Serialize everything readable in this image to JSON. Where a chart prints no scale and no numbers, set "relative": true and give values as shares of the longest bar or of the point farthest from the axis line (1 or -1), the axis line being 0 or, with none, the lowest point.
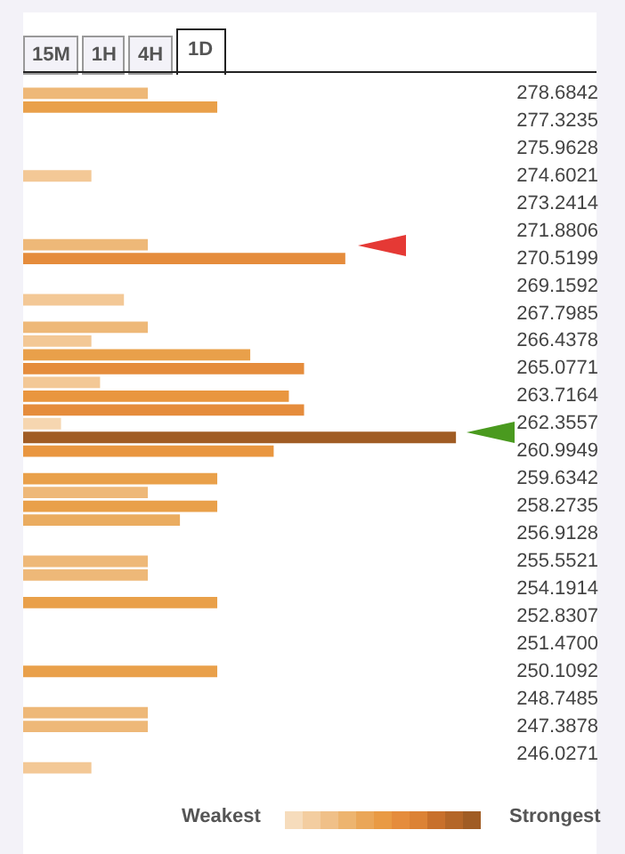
{
  "chart_data": {
    "type": "bar",
    "orientation": "horizontal",
    "relative": true,
    "grid": false,
    "legend": false,
    "categories": [
      "278.6842",
      null,
      "277.3235",
      null,
      "275.9628",
      null,
      "274.6021",
      null,
      "273.2414",
      null,
      "271.8806",
      null,
      "270.5199",
      null,
      "269.1592",
      null,
      "267.7985",
      null,
      "266.4378",
      null,
      "265.0771",
      null,
      "263.7164",
      null,
      "262.3557",
      null,
      "260.9949",
      null,
      "259.6342",
      null,
      "258.2735",
      null,
      "256.9128",
      null,
      "255.5521",
      null,
      "254.1914",
      null,
      "252.8307",
      null,
      "251.4700",
      null,
      "250.1092",
      null,
      "248.7485",
      null,
      "247.3878",
      null,
      "246.0271",
      null
    ],
    "values": [
      0.29,
      0.45,
      0,
      0,
      0,
      0,
      0.16,
      0,
      0,
      0,
      0,
      0.29,
      0.745,
      0,
      0,
      0.235,
      0,
      0.29,
      0.16,
      0.526,
      0.65,
      0.18,
      0.615,
      0.65,
      0.09,
      1,
      0.58,
      0,
      0.45,
      0.29,
      0.45,
      0.364,
      0,
      0,
      0.29,
      0.29,
      0,
      0.45,
      0,
      0,
      0,
      0,
      0.45,
      0,
      0,
      0.29,
      0.29,
      0,
      0,
      0.16
    ],
    "colors": [
      "#eeb878",
      "#e9a04a",
      "#ffffff",
      "#ffffff",
      "#ffffff",
      "#ffffff",
      "#f3c896",
      "#ffffff",
      "#ffffff",
      "#ffffff",
      "#ffffff",
      "#eeb878",
      "#e58c3c",
      "#ffffff",
      "#ffffff",
      "#f3c896",
      "#ffffff",
      "#eeb878",
      "#f3c896",
      "#e9a04a",
      "#e58c3c",
      "#f3c896",
      "#e9963f",
      "#e58c3c",
      "#f6d6b0",
      "#a05c24",
      "#e9963f",
      "#ffffff",
      "#e9a04a",
      "#eeb878",
      "#e9a04a",
      "#eaac60",
      "#ffffff",
      "#ffffff",
      "#eeb878",
      "#eeb878",
      "#ffffff",
      "#e9a04a",
      "#ffffff",
      "#ffffff",
      "#ffffff",
      "#ffffff",
      "#e9a04a",
      "#ffffff",
      "#ffffff",
      "#eeb878",
      "#eeb878",
      "#ffffff",
      "#ffffff",
      "#f3c896"
    ],
    "annotations": [
      "15M",
      "1H",
      "4H",
      "1D",
      "Weakest",
      "Strongest"
    ]
  }
}
